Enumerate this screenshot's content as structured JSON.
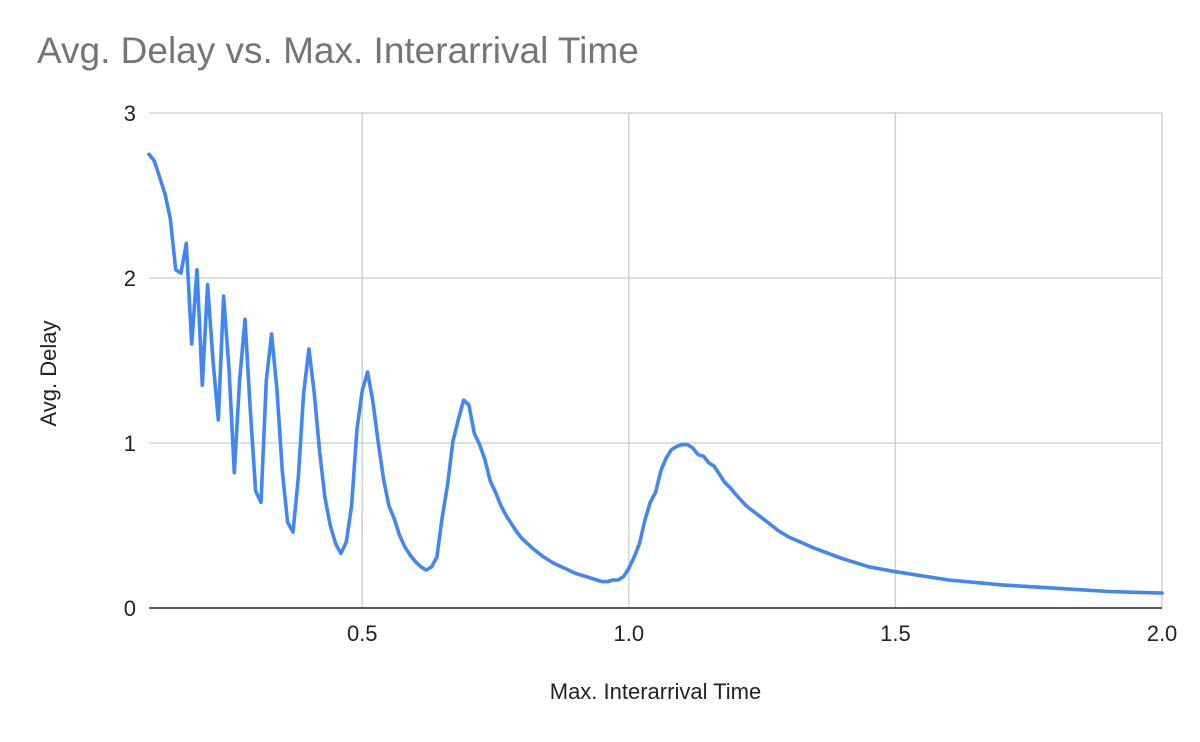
{
  "chart_data": {
    "type": "line",
    "title": "Avg. Delay vs. Max. Interarrival Time",
    "xlabel": "Max. Interarrival Time",
    "ylabel": "Avg. Delay",
    "xlim": [
      0.1,
      2.0
    ],
    "ylim": [
      0,
      3
    ],
    "x_ticks": [
      0.5,
      1.0,
      1.5,
      2.0
    ],
    "x_tick_labels": [
      "0.5",
      "1.0",
      "1.5",
      "2.0"
    ],
    "y_ticks": [
      0,
      1,
      2,
      3
    ],
    "y_tick_labels": [
      "0",
      "1",
      "2",
      "3"
    ],
    "grid": true,
    "legend": "none",
    "colors": {
      "series": "#4285f4",
      "grid": "#cccccc",
      "axis": "#222222",
      "title": "#757575"
    },
    "series": [
      {
        "x": [
          0.1,
          0.11,
          0.12,
          0.13,
          0.14,
          0.15,
          0.16,
          0.17,
          0.18,
          0.19,
          0.2,
          0.21,
          0.22,
          0.23,
          0.24,
          0.25,
          0.26,
          0.27,
          0.28,
          0.29,
          0.3,
          0.31,
          0.32,
          0.33,
          0.34,
          0.35,
          0.36,
          0.37,
          0.38,
          0.39,
          0.4,
          0.41,
          0.42,
          0.43,
          0.44,
          0.45,
          0.46,
          0.47,
          0.48,
          0.49,
          0.5,
          0.51,
          0.52,
          0.53,
          0.54,
          0.55,
          0.56,
          0.57,
          0.58,
          0.59,
          0.6,
          0.61,
          0.62,
          0.63,
          0.64,
          0.65,
          0.66,
          0.67,
          0.68,
          0.69,
          0.7,
          0.71,
          0.72,
          0.73,
          0.74,
          0.75,
          0.76,
          0.77,
          0.78,
          0.79,
          0.8,
          0.82,
          0.84,
          0.86,
          0.88,
          0.9,
          0.92,
          0.94,
          0.95,
          0.96,
          0.97,
          0.98,
          0.99,
          1.0,
          1.01,
          1.02,
          1.03,
          1.04,
          1.05,
          1.06,
          1.07,
          1.08,
          1.09,
          1.1,
          1.11,
          1.12,
          1.13,
          1.14,
          1.15,
          1.16,
          1.17,
          1.18,
          1.19,
          1.2,
          1.22,
          1.24,
          1.26,
          1.28,
          1.3,
          1.35,
          1.4,
          1.45,
          1.5,
          1.6,
          1.7,
          1.8,
          1.9,
          2.0
        ],
        "y": [
          2.75,
          2.71,
          2.61,
          2.51,
          2.36,
          2.05,
          2.03,
          2.21,
          1.6,
          2.05,
          1.35,
          1.96,
          1.5,
          1.14,
          1.89,
          1.45,
          0.82,
          1.38,
          1.75,
          1.2,
          0.71,
          0.64,
          1.38,
          1.66,
          1.32,
          0.83,
          0.52,
          0.46,
          0.79,
          1.3,
          1.57,
          1.3,
          0.95,
          0.67,
          0.5,
          0.39,
          0.33,
          0.4,
          0.62,
          1.08,
          1.32,
          1.43,
          1.25,
          1.0,
          0.78,
          0.62,
          0.54,
          0.44,
          0.37,
          0.32,
          0.28,
          0.25,
          0.23,
          0.25,
          0.31,
          0.55,
          0.75,
          1.01,
          1.14,
          1.26,
          1.23,
          1.06,
          0.99,
          0.9,
          0.77,
          0.7,
          0.62,
          0.56,
          0.51,
          0.46,
          0.42,
          0.36,
          0.31,
          0.27,
          0.24,
          0.21,
          0.19,
          0.17,
          0.16,
          0.16,
          0.17,
          0.17,
          0.19,
          0.24,
          0.31,
          0.39,
          0.53,
          0.64,
          0.7,
          0.83,
          0.91,
          0.96,
          0.98,
          0.99,
          0.99,
          0.97,
          0.93,
          0.92,
          0.88,
          0.86,
          0.81,
          0.76,
          0.73,
          0.69,
          0.62,
          0.57,
          0.52,
          0.47,
          0.43,
          0.36,
          0.3,
          0.25,
          0.22,
          0.17,
          0.14,
          0.12,
          0.1,
          0.09
        ]
      }
    ]
  }
}
